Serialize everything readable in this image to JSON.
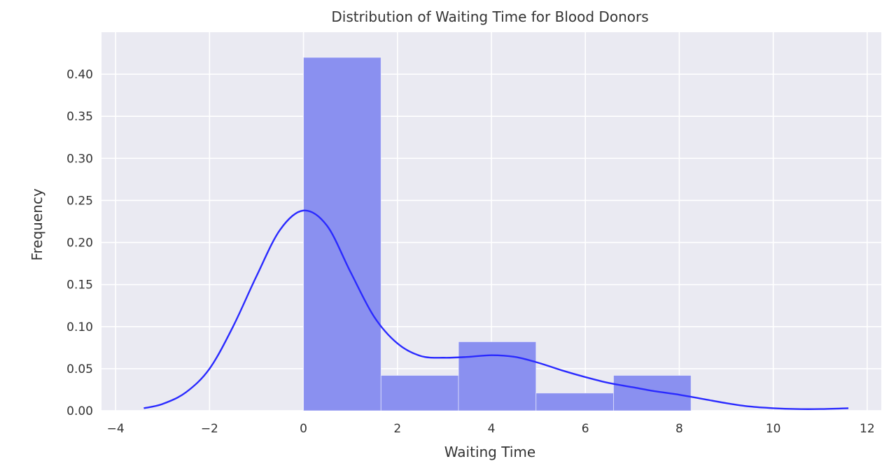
{
  "chart_data": {
    "type": "bar",
    "title": "Distribution of Waiting Time for Blood Donors",
    "xlabel": "Waiting Time",
    "ylabel": "Frequency",
    "xlim": [
      -4.3,
      12.3
    ],
    "ylim": [
      0,
      0.45
    ],
    "xticks": [
      -4,
      -2,
      0,
      2,
      4,
      6,
      8,
      10,
      12
    ],
    "xtick_labels": [
      "−4",
      "−2",
      "0",
      "2",
      "4",
      "6",
      "8",
      "10",
      "12"
    ],
    "yticks": [
      0.0,
      0.05,
      0.1,
      0.15,
      0.2,
      0.25,
      0.3,
      0.35,
      0.4
    ],
    "ytick_labels": [
      "0.00",
      "0.05",
      "0.10",
      "0.15",
      "0.20",
      "0.25",
      "0.30",
      "0.35",
      "0.40"
    ],
    "grid": true,
    "histogram": {
      "bins": [
        {
          "start": 0.0,
          "end": 1.65,
          "value": 0.42
        },
        {
          "start": 1.65,
          "end": 3.3,
          "value": 0.042
        },
        {
          "start": 3.3,
          "end": 4.95,
          "value": 0.082
        },
        {
          "start": 4.95,
          "end": 6.6,
          "value": 0.021
        },
        {
          "start": 6.6,
          "end": 8.25,
          "value": 0.042
        }
      ],
      "color": "#8a90f0"
    },
    "kde": {
      "x": [
        -3.4,
        -3.0,
        -2.5,
        -2.0,
        -1.5,
        -1.0,
        -0.5,
        0.0,
        0.5,
        1.0,
        1.5,
        2.0,
        2.5,
        3.0,
        3.5,
        4.0,
        4.5,
        5.0,
        5.5,
        6.0,
        6.5,
        7.0,
        7.5,
        8.0,
        8.5,
        9.0,
        9.5,
        10.0,
        10.5,
        11.0,
        11.6
      ],
      "y": [
        0.003,
        0.008,
        0.022,
        0.05,
        0.1,
        0.16,
        0.215,
        0.238,
        0.22,
        0.165,
        0.112,
        0.08,
        0.065,
        0.063,
        0.064,
        0.066,
        0.064,
        0.057,
        0.048,
        0.04,
        0.033,
        0.028,
        0.023,
        0.019,
        0.014,
        0.009,
        0.005,
        0.003,
        0.002,
        0.002,
        0.003
      ],
      "color": "#2a2aff"
    },
    "colors": {
      "plot_background": "#eaeaf2",
      "grid": "#ffffff"
    }
  }
}
